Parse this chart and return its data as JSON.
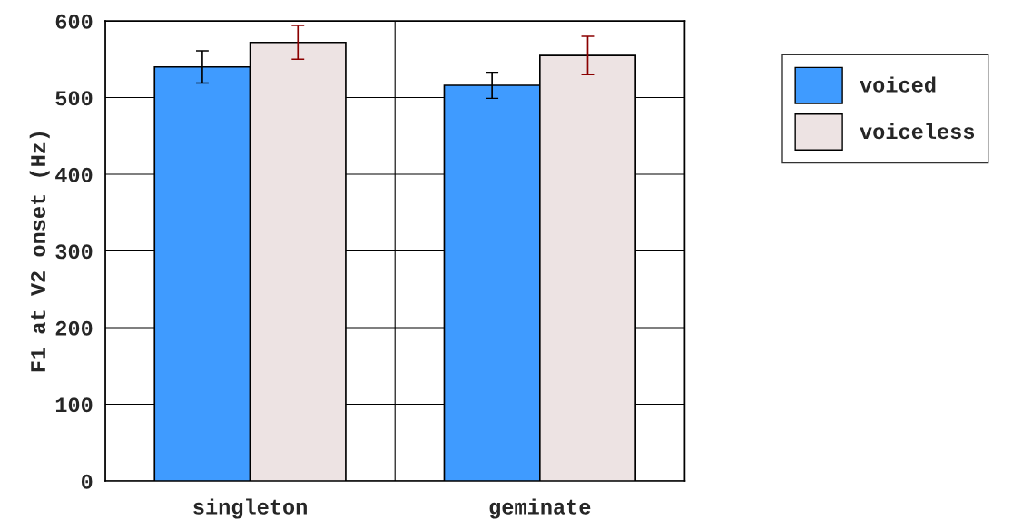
{
  "chart_data": {
    "type": "bar",
    "ylabel": "F1 at V2 onset (Hz)",
    "categories": [
      "singleton",
      "geminate"
    ],
    "series": [
      {
        "name": "voiced",
        "color": "#3f9bff",
        "values": [
          540,
          516
        ],
        "errors": [
          21,
          17
        ]
      },
      {
        "name": "voiceless",
        "color": "#ede3e3",
        "values": [
          572,
          555
        ],
        "errors": [
          22,
          25
        ]
      }
    ],
    "ylim": [
      0,
      600
    ],
    "yticks": [
      0,
      100,
      200,
      300,
      400,
      500,
      600
    ],
    "grid": true,
    "legend": "right"
  }
}
